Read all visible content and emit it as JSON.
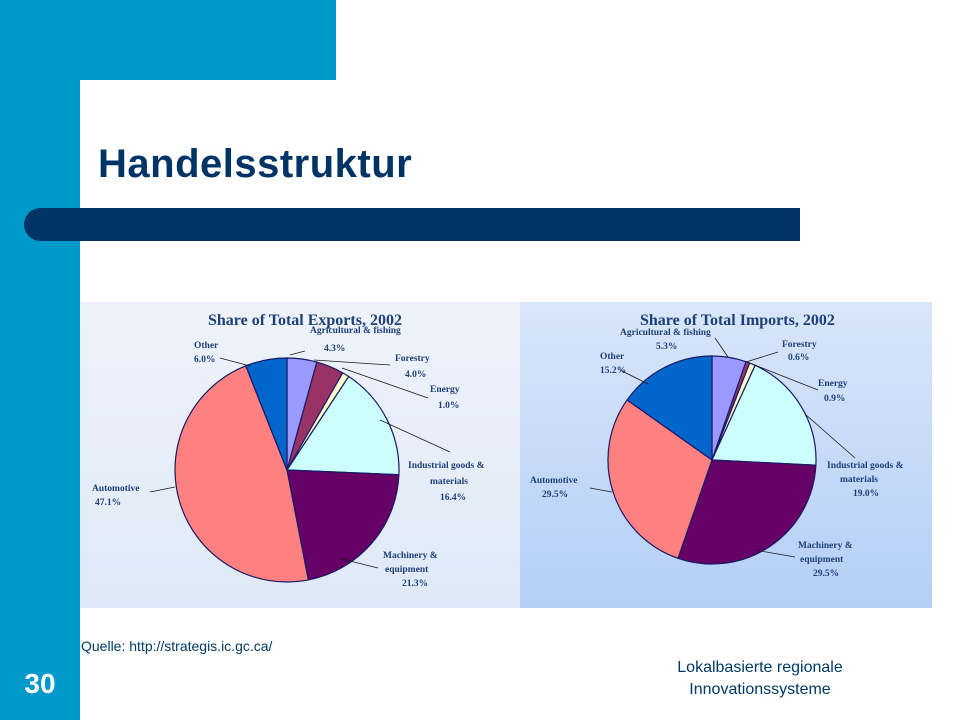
{
  "slide": {
    "title": "Handelsstruktur",
    "source": "Quelle: http://strategis.ic.gc.ca/",
    "number": "30",
    "footer_line1": "Lokalbasierte regionale",
    "footer_line2": "Innovationssysteme"
  },
  "chart_data": [
    {
      "type": "pie",
      "title": "Share of Total Exports, 2002",
      "slices": [
        {
          "label": "Agricultural & fishing",
          "value_text": "4.3%",
          "value": 4.3,
          "color": "#9999ff"
        },
        {
          "label": "Forestry",
          "value_text": "4.0%",
          "value": 4.0,
          "color": "#993366"
        },
        {
          "label": "Energy",
          "value_text": "1.0%",
          "value": 1.0,
          "color": "#ffffcc"
        },
        {
          "label": "Industrial goods & materials",
          "value_text": "16.4%",
          "value": 16.4,
          "color": "#ccffff"
        },
        {
          "label": "Machinery & equipment",
          "value_text": "21.3%",
          "value": 21.3,
          "color": "#660066"
        },
        {
          "label": "Automotive",
          "value_text": "47.1%",
          "value": 47.1,
          "color": "#ff8080"
        },
        {
          "label": "Other",
          "value_text": "6.0%",
          "value": 6.0,
          "color": "#0066cc"
        }
      ]
    },
    {
      "type": "pie",
      "title": "Share of Total Imports, 2002",
      "slices": [
        {
          "label": "Agricultural & fishing",
          "value_text": "5.3%",
          "value": 5.3,
          "color": "#9999ff"
        },
        {
          "label": "Forestry",
          "value_text": "0.6%",
          "value": 0.6,
          "color": "#993366"
        },
        {
          "label": "Energy",
          "value_text": "0.9%",
          "value": 0.9,
          "color": "#ffffcc"
        },
        {
          "label": "Industrial goods & materials",
          "value_text": "19.0%",
          "value": 19.0,
          "color": "#ccffff"
        },
        {
          "label": "Machinery & equipment",
          "value_text": "29.5%",
          "value": 29.5,
          "color": "#660066"
        },
        {
          "label": "Automotive",
          "value_text": "29.5%",
          "value": 29.5,
          "color": "#ff8080"
        },
        {
          "label": "Other",
          "value_text": "15.2%",
          "value": 15.2,
          "color": "#0066cc"
        }
      ]
    }
  ]
}
